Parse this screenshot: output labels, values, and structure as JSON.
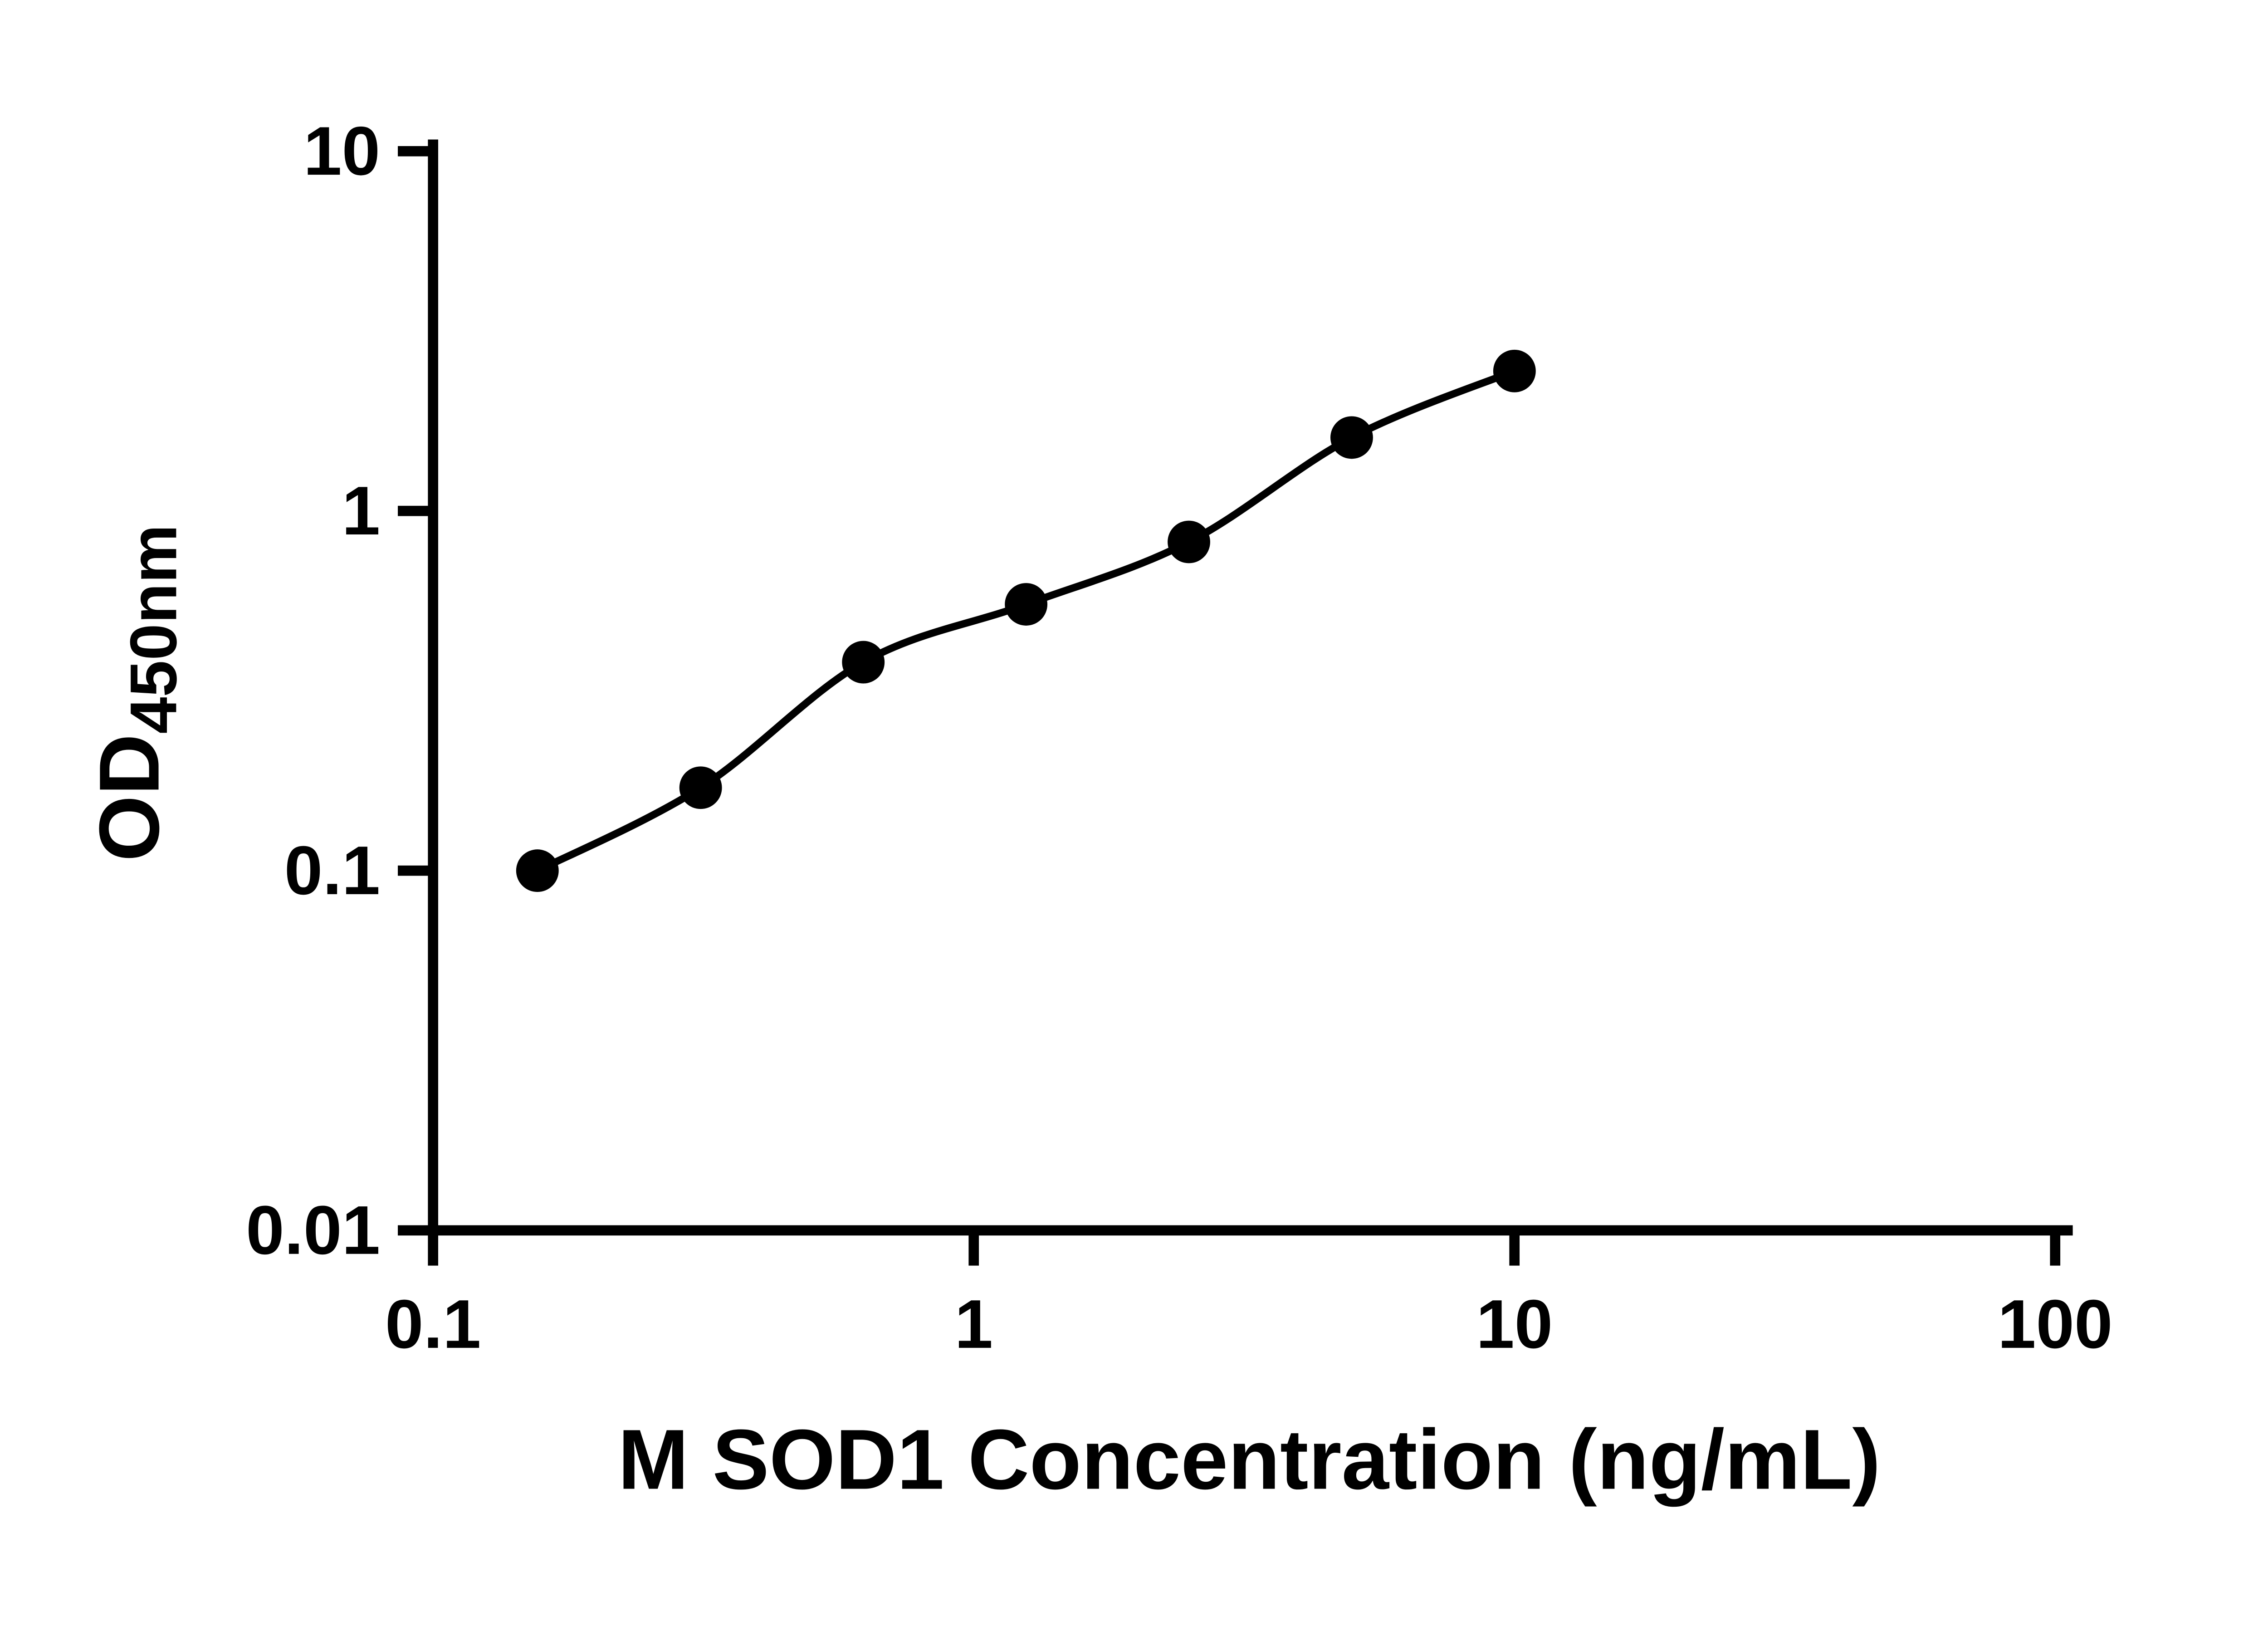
{
  "chart_data": {
    "type": "scatter",
    "title": "",
    "xlabel": "M SOD1 Concentration (ng/mL)",
    "ylabel": "OD",
    "ylabel_sub": "450nm",
    "xscale": "log",
    "yscale": "log",
    "xlim": [
      0.1,
      100
    ],
    "ylim": [
      0.01,
      10
    ],
    "grid": false,
    "legend": "none",
    "axis_color": "#000000",
    "background_color": "#ffffff",
    "x_ticks": [
      {
        "value": 0.1,
        "label": "0.1"
      },
      {
        "value": 1,
        "label": "1"
      },
      {
        "value": 10,
        "label": "10"
      },
      {
        "value": 100,
        "label": "100"
      }
    ],
    "y_ticks": [
      {
        "value": 0.01,
        "label": "0.01"
      },
      {
        "value": 0.1,
        "label": "0.1"
      },
      {
        "value": 1,
        "label": "1"
      },
      {
        "value": 10,
        "label": "10"
      }
    ],
    "series": [
      {
        "marker": "circle",
        "marker_color": "#000000",
        "line_color": "#000000",
        "x": [
          0.156,
          0.3125,
          0.625,
          1.25,
          2.5,
          5,
          10
        ],
        "y": [
          0.1,
          0.17,
          0.38,
          0.55,
          0.82,
          1.6,
          2.45
        ]
      }
    ]
  }
}
